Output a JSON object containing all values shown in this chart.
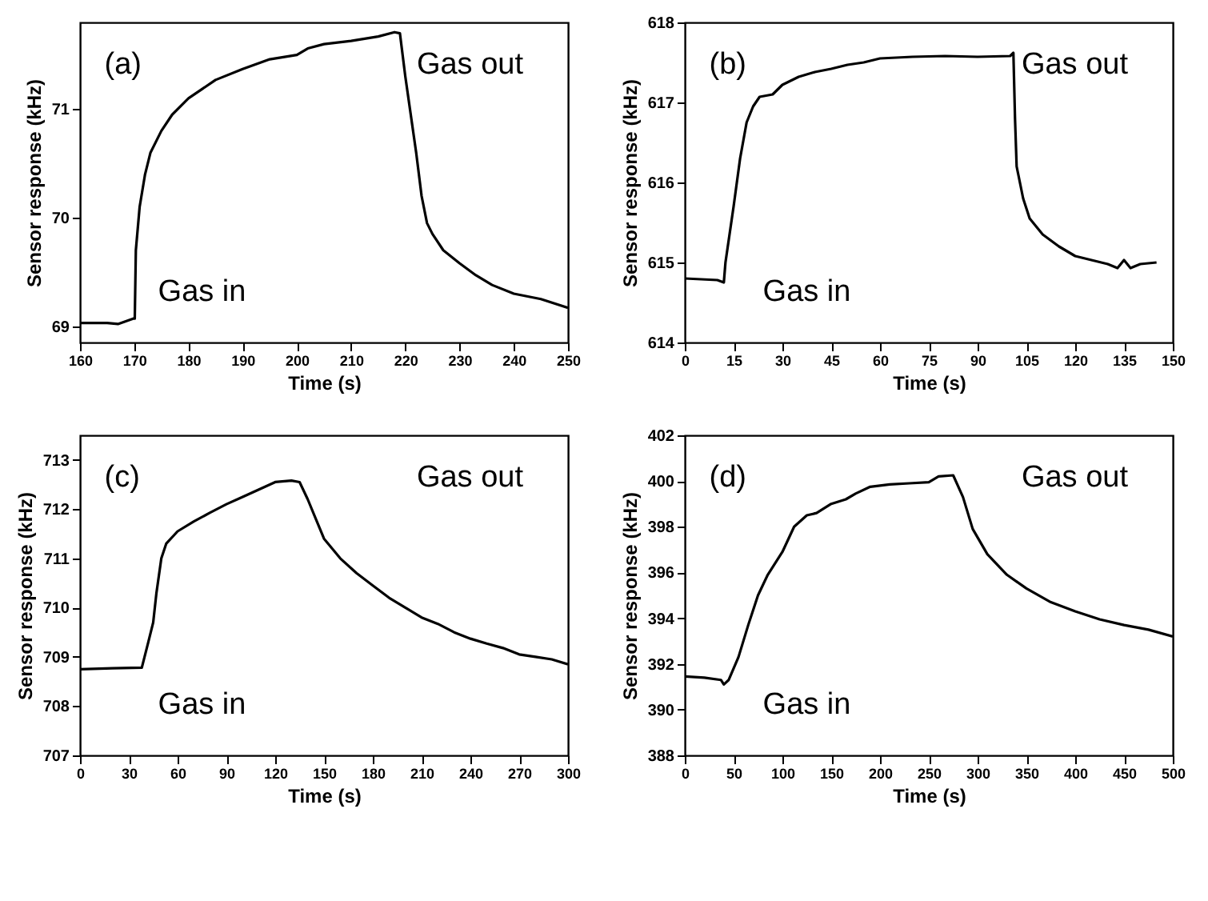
{
  "chart_data": [
    {
      "type": "line",
      "xlabel": "Time (s)",
      "ylabel": "Sensor response (kHz)",
      "xlim": [
        160,
        250
      ],
      "ylim": [
        68.85,
        71.8
      ],
      "xticks": [
        160,
        170,
        180,
        190,
        200,
        210,
        220,
        230,
        240,
        250
      ],
      "yticks": [
        69,
        70,
        71
      ],
      "grid": false,
      "annotations": [
        "(a)",
        "Gas in",
        "Gas out"
      ],
      "x": [
        160,
        165,
        167,
        169.8,
        170.1,
        170.3,
        171,
        172,
        173,
        175,
        177,
        180,
        185,
        190,
        195,
        200,
        202,
        205,
        210,
        215,
        218,
        219,
        220,
        222,
        223,
        224,
        225,
        227,
        230,
        233,
        236,
        240,
        245,
        250
      ],
      "series": [
        {
          "color": "#000000",
          "values": [
            69.03,
            69.03,
            69.02,
            69.07,
            69.07,
            69.7,
            70.1,
            70.4,
            70.6,
            70.8,
            70.95,
            71.1,
            71.27,
            71.37,
            71.46,
            71.5,
            71.56,
            71.6,
            71.63,
            71.67,
            71.71,
            71.7,
            71.3,
            70.6,
            70.2,
            69.95,
            69.85,
            69.7,
            69.58,
            69.47,
            69.38,
            69.3,
            69.25,
            69.17
          ]
        }
      ]
    },
    {
      "type": "line",
      "xlabel": "Time (s)",
      "ylabel": "Sensor response (kHz)",
      "xlim": [
        0,
        150
      ],
      "ylim": [
        614,
        618
      ],
      "xticks": [
        0,
        15,
        30,
        45,
        60,
        75,
        90,
        105,
        120,
        135,
        150
      ],
      "yticks": [
        614,
        615,
        616,
        617,
        618
      ],
      "grid": false,
      "annotations": [
        "(b)",
        "Gas in",
        "Gas out"
      ],
      "x": [
        0,
        10,
        12,
        12.5,
        15,
        17,
        19,
        21,
        23,
        27,
        30,
        35,
        40,
        45,
        50,
        55,
        60,
        70,
        80,
        90,
        100,
        101,
        101.5,
        102,
        104,
        106,
        110,
        115,
        120,
        125,
        130,
        133,
        135,
        137,
        140,
        145
      ],
      "series": [
        {
          "color": "#000000",
          "values": [
            614.8,
            614.78,
            614.75,
            615.0,
            615.7,
            616.3,
            616.75,
            616.95,
            617.07,
            617.1,
            617.22,
            617.32,
            617.38,
            617.42,
            617.47,
            617.5,
            617.55,
            617.57,
            617.58,
            617.57,
            617.58,
            617.62,
            616.8,
            616.2,
            615.8,
            615.55,
            615.35,
            615.2,
            615.08,
            615.03,
            614.98,
            614.93,
            615.03,
            614.93,
            614.98,
            615.0
          ]
        }
      ]
    },
    {
      "type": "line",
      "xlabel": "Time (s)",
      "ylabel": "Sensor response (kHz)",
      "xlim": [
        0,
        300
      ],
      "ylim": [
        707,
        713.5
      ],
      "xticks": [
        0,
        30,
        60,
        90,
        120,
        150,
        180,
        210,
        240,
        270,
        300
      ],
      "yticks": [
        707,
        708,
        709,
        710,
        711,
        712,
        713
      ],
      "grid": false,
      "annotations": [
        "(c)",
        "Gas in",
        "Gas out"
      ],
      "x": [
        0,
        20,
        38,
        42,
        45,
        47,
        50,
        53,
        60,
        70,
        80,
        90,
        100,
        110,
        120,
        130,
        135,
        140,
        145,
        150,
        160,
        170,
        180,
        190,
        200,
        210,
        220,
        230,
        240,
        250,
        260,
        270,
        280,
        290,
        300
      ],
      "series": [
        {
          "color": "#000000",
          "values": [
            708.75,
            708.77,
            708.78,
            709.3,
            709.7,
            710.3,
            711.0,
            711.3,
            711.55,
            711.75,
            711.93,
            712.1,
            712.25,
            712.4,
            712.55,
            712.58,
            712.55,
            712.2,
            711.8,
            711.4,
            711.0,
            710.7,
            710.45,
            710.2,
            710.0,
            709.8,
            709.67,
            709.5,
            709.37,
            709.27,
            709.18,
            709.05,
            709.0,
            708.95,
            708.85
          ]
        }
      ]
    },
    {
      "type": "line",
      "xlabel": "Time (s)",
      "ylabel": "Sensor response (kHz)",
      "xlim": [
        0,
        500
      ],
      "ylim": [
        388,
        402
      ],
      "xticks": [
        0,
        50,
        100,
        150,
        200,
        250,
        300,
        350,
        400,
        450,
        500
      ],
      "yticks": [
        388,
        390,
        392,
        394,
        396,
        398,
        400,
        402
      ],
      "grid": false,
      "annotations": [
        "(d)",
        "Gas in",
        "Gas out"
      ],
      "x": [
        0,
        20,
        37,
        40,
        45,
        55,
        65,
        75,
        85,
        100,
        112,
        125,
        135,
        150,
        165,
        175,
        190,
        210,
        230,
        250,
        260,
        275,
        285,
        295,
        310,
        330,
        350,
        375,
        400,
        425,
        450,
        475,
        500
      ],
      "series": [
        {
          "color": "#000000",
          "values": [
            391.45,
            391.4,
            391.3,
            391.1,
            391.3,
            392.3,
            393.7,
            395.0,
            395.9,
            396.9,
            398.0,
            398.5,
            398.6,
            399.0,
            399.2,
            399.45,
            399.75,
            399.85,
            399.9,
            399.95,
            400.2,
            400.25,
            399.3,
            397.9,
            396.8,
            395.9,
            395.3,
            394.7,
            394.3,
            393.95,
            393.7,
            393.5,
            393.2
          ]
        }
      ]
    }
  ]
}
